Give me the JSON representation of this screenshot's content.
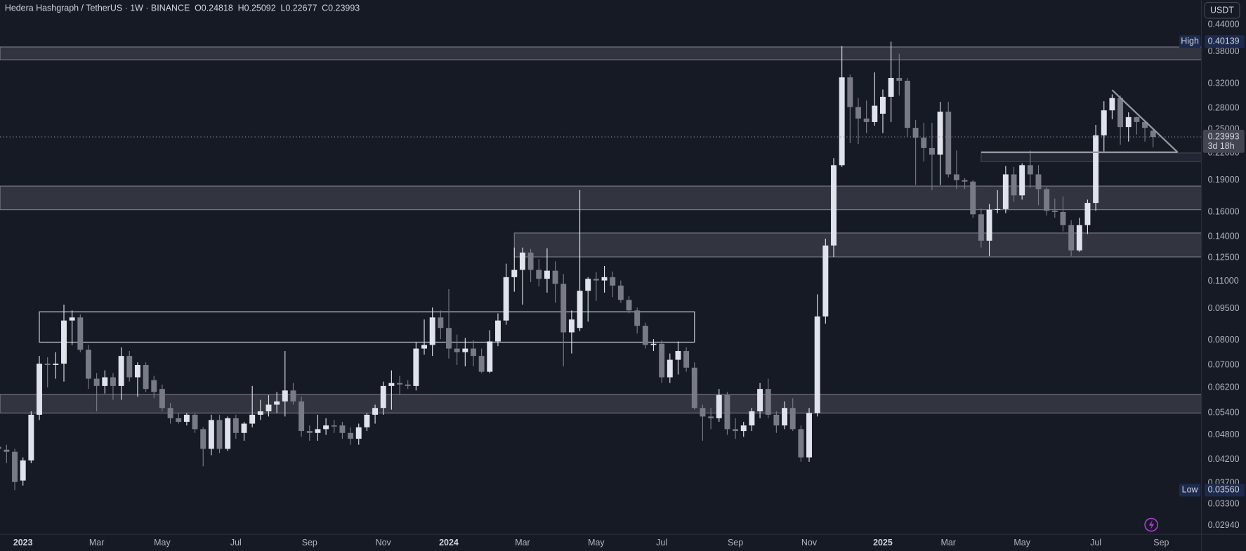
{
  "chart_data": {
    "type": "candlestick",
    "title": "Hedera Hashgraph / TetherUS · 1W · BINANCE",
    "ohlc_labels": [
      "O",
      "H",
      "L",
      "C"
    ],
    "currency": "USDT",
    "countdown": "3d 18h",
    "up_color": "#e0e3eb",
    "down_color": "#787b86",
    "log_scale": true,
    "grid": false,
    "ylim": [
      0.02805,
      0.5027
    ],
    "xlim": [
      0.2,
      146.9
    ],
    "yticks": [
      {
        "value": 0.44,
        "label": "0.44000"
      },
      {
        "value": 0.38,
        "label": "0.38000"
      },
      {
        "value": 0.32,
        "label": "0.32000"
      },
      {
        "value": 0.28,
        "label": "0.28000"
      },
      {
        "value": 0.25,
        "label": "0.25000"
      },
      {
        "value": 0.22,
        "label": "0.22000"
      },
      {
        "value": 0.19,
        "label": "0.19000"
      },
      {
        "value": 0.16,
        "label": "0.16000"
      },
      {
        "value": 0.14,
        "label": "0.14000"
      },
      {
        "value": 0.125,
        "label": "0.12500"
      },
      {
        "value": 0.11,
        "label": "0.11000"
      },
      {
        "value": 0.095,
        "label": "0.09500"
      },
      {
        "value": 0.08,
        "label": "0.08000"
      },
      {
        "value": 0.07,
        "label": "0.07000"
      },
      {
        "value": 0.062,
        "label": "0.06200"
      },
      {
        "value": 0.054,
        "label": "0.05400"
      },
      {
        "value": 0.048,
        "label": "0.04800"
      },
      {
        "value": 0.042,
        "label": "0.04200"
      },
      {
        "value": 0.037,
        "label": "0.03700"
      },
      {
        "value": 0.033,
        "label": "0.03300"
      },
      {
        "value": 0.0294,
        "label": "0.02940"
      }
    ],
    "categories": [
      null,
      null,
      null,
      "2023",
      null,
      null,
      null,
      null,
      null,
      null,
      null,
      null,
      "Mar",
      null,
      null,
      null,
      null,
      null,
      null,
      null,
      "May",
      null,
      null,
      null,
      null,
      null,
      null,
      null,
      null,
      "Jul",
      null,
      null,
      null,
      null,
      null,
      null,
      null,
      null,
      "Sep",
      null,
      null,
      null,
      null,
      null,
      null,
      null,
      null,
      "Nov",
      null,
      null,
      null,
      null,
      null,
      null,
      null,
      "2024",
      null,
      null,
      null,
      null,
      null,
      null,
      null,
      null,
      "Mar",
      null,
      null,
      null,
      null,
      null,
      null,
      null,
      null,
      "May",
      null,
      null,
      null,
      null,
      null,
      null,
      null,
      "Jul",
      null,
      null,
      null,
      null,
      null,
      null,
      null,
      null,
      "Sep",
      null,
      null,
      null,
      null,
      null,
      null,
      null,
      null,
      "Nov",
      null,
      null,
      null,
      null,
      null,
      null,
      null,
      null,
      "2025",
      null,
      null,
      null,
      null,
      null,
      null,
      null,
      "Mar",
      null,
      null,
      null,
      null,
      null,
      null,
      null,
      null,
      "May",
      null,
      null,
      null,
      null,
      null,
      null,
      null,
      null,
      "Jul",
      null,
      null,
      null,
      null,
      null,
      null,
      null,
      "Sep"
    ],
    "open": [
      0.045,
      0.0443,
      0.0438,
      0.0375,
      0.0418,
      0.0535,
      0.0705,
      0.07,
      0.0705,
      0.089,
      0.0905,
      0.076,
      0.065,
      0.0625,
      0.0655,
      0.0625,
      0.0735,
      0.0655,
      0.07,
      0.0645,
      0.0615,
      0.0555,
      0.0525,
      0.0515,
      0.0535,
      0.0495,
      0.0445,
      0.052,
      0.0445,
      0.0525,
      0.0485,
      0.051,
      0.0535,
      0.0545,
      0.0565,
      0.0575,
      0.061,
      0.0575,
      0.049,
      0.0485,
      0.0495,
      0.0505,
      0.0505,
      0.0485,
      0.047,
      0.05,
      0.0535,
      0.0555,
      0.0625,
      0.0635,
      0.063,
      0.0625,
      0.0765,
      0.078,
      0.0905,
      0.0855,
      0.0765,
      0.075,
      0.0765,
      0.0735,
      0.0675,
      0.0795,
      0.089,
      0.1125,
      0.117,
      0.1285,
      0.117,
      0.1115,
      0.1165,
      0.1085,
      0.0835,
      0.0855,
      0.1045,
      0.1115,
      0.1105,
      0.1125,
      0.1075,
      0.0995,
      0.094,
      0.0865,
      0.078,
      0.0785,
      0.0655,
      0.072,
      0.0755,
      0.069,
      0.0555,
      0.053,
      0.0525,
      0.0595,
      0.0495,
      0.049,
      0.0505,
      0.0545,
      0.0615,
      0.0535,
      0.0505,
      0.0555,
      0.0495,
      0.0425,
      0.054,
      0.091,
      0.1335,
      0.206,
      0.331,
      0.282,
      0.265,
      0.26,
      0.272,
      0.298,
      0.33,
      0.325,
      0.252,
      0.239,
      0.226,
      0.218,
      0.275,
      0.196,
      0.19,
      0.1885,
      0.158,
      0.137,
      0.162,
      0.1625,
      0.196,
      0.175,
      0.206,
      0.196,
      0.181,
      0.161,
      0.16,
      0.149,
      0.13,
      0.149,
      0.168,
      0.242,
      0.277,
      0.296,
      0.253,
      0.267,
      0.26,
      0.24818,
      null
    ],
    "high": [
      0.048,
      0.0455,
      0.0445,
      0.0425,
      0.0545,
      0.0735,
      0.073,
      0.075,
      0.097,
      0.094,
      0.092,
      0.078,
      0.067,
      0.068,
      0.067,
      0.077,
      0.0755,
      0.071,
      0.071,
      0.066,
      0.063,
      0.057,
      0.054,
      0.054,
      0.054,
      0.05,
      0.0535,
      0.0535,
      0.053,
      0.0535,
      0.0515,
      0.0625,
      0.058,
      0.0595,
      0.0605,
      0.0755,
      0.0635,
      0.059,
      0.0505,
      0.0535,
      0.0525,
      0.052,
      0.0515,
      0.05,
      0.051,
      0.054,
      0.0565,
      0.064,
      0.068,
      0.066,
      0.0645,
      0.079,
      0.0895,
      0.0955,
      0.094,
      0.1055,
      0.0825,
      0.081,
      0.08,
      0.0765,
      0.0845,
      0.0925,
      0.121,
      0.132,
      0.132,
      0.131,
      0.124,
      0.1315,
      0.1225,
      0.1145,
      0.094,
      0.18,
      0.1125,
      0.1155,
      0.1195,
      0.116,
      0.1105,
      0.1015,
      0.0955,
      0.088,
      0.0805,
      0.08,
      0.0745,
      0.0795,
      0.077,
      0.071,
      0.0565,
      0.0555,
      0.0615,
      0.0605,
      0.0525,
      0.0515,
      0.0555,
      0.0635,
      0.065,
      0.0545,
      0.0575,
      0.0585,
      0.0505,
      0.0555,
      0.1025,
      0.1385,
      0.214,
      0.392,
      0.336,
      0.296,
      0.292,
      0.34,
      0.31,
      0.40139,
      0.376,
      0.33,
      0.263,
      0.259,
      0.259,
      0.29,
      0.29,
      0.223,
      0.192,
      0.19,
      0.163,
      0.167,
      0.18,
      0.205,
      0.204,
      0.208,
      0.223,
      0.206,
      0.183,
      0.172,
      0.174,
      0.153,
      0.155,
      0.171,
      0.256,
      0.291,
      0.302,
      0.3,
      0.274,
      0.268,
      0.262,
      0.25092,
      null
    ],
    "low": [
      0.044,
      0.0412,
      0.0356,
      0.0365,
      0.0412,
      0.052,
      0.062,
      0.065,
      0.064,
      0.078,
      0.075,
      0.0615,
      0.0545,
      0.06,
      0.058,
      0.058,
      0.064,
      0.059,
      0.0605,
      0.0585,
      0.0545,
      0.051,
      0.051,
      0.0505,
      0.0485,
      0.0405,
      0.043,
      0.0435,
      0.044,
      0.047,
      0.0465,
      0.05,
      0.052,
      0.053,
      0.054,
      0.053,
      0.0565,
      0.0475,
      0.0465,
      0.0465,
      0.048,
      0.0485,
      0.047,
      0.0455,
      0.0455,
      0.049,
      0.051,
      0.0535,
      0.055,
      0.0595,
      0.0615,
      0.061,
      0.074,
      0.0735,
      0.0805,
      0.0725,
      0.07,
      0.0695,
      0.0695,
      0.067,
      0.067,
      0.0775,
      0.087,
      0.104,
      0.097,
      0.1095,
      0.107,
      0.1035,
      0.098,
      0.0695,
      0.0745,
      0.084,
      0.0885,
      0.099,
      0.1035,
      0.101,
      0.098,
      0.0925,
      0.083,
      0.0765,
      0.0755,
      0.0635,
      0.0635,
      0.0665,
      0.0675,
      0.055,
      0.0465,
      0.0495,
      0.0515,
      0.048,
      0.047,
      0.0475,
      0.049,
      0.0525,
      0.0525,
      0.0485,
      0.0495,
      0.049,
      0.0415,
      0.0415,
      0.053,
      0.0875,
      0.1255,
      0.204,
      0.232,
      0.231,
      0.245,
      0.255,
      0.245,
      0.26,
      0.3,
      0.24,
      0.185,
      0.21,
      0.18,
      0.185,
      0.193,
      0.181,
      0.181,
      0.155,
      0.132,
      0.126,
      0.159,
      0.159,
      0.169,
      0.171,
      0.182,
      0.166,
      0.157,
      0.155,
      0.144,
      0.126,
      0.129,
      0.142,
      0.161,
      0.222,
      0.264,
      0.23,
      0.234,
      0.243,
      0.234,
      0.22677,
      null
    ],
    "close": [
      0.0445,
      0.0438,
      0.0372,
      0.0418,
      0.0535,
      0.0705,
      0.07,
      0.0705,
      0.089,
      0.0905,
      0.076,
      0.065,
      0.0625,
      0.0655,
      0.0625,
      0.0735,
      0.0655,
      0.07,
      0.0615,
      0.0605,
      0.0555,
      0.0525,
      0.0515,
      0.0535,
      0.0495,
      0.0445,
      0.052,
      0.0445,
      0.0525,
      0.0485,
      0.051,
      0.0535,
      0.0545,
      0.0565,
      0.0575,
      0.061,
      0.0575,
      0.049,
      0.0485,
      0.0495,
      0.0505,
      0.0502,
      0.0485,
      0.047,
      0.05,
      0.0535,
      0.0555,
      0.0625,
      0.0635,
      0.063,
      0.0625,
      0.0765,
      0.078,
      0.0905,
      0.0855,
      0.0765,
      0.075,
      0.0765,
      0.0735,
      0.0675,
      0.0795,
      0.089,
      0.1125,
      0.117,
      0.1285,
      0.117,
      0.1115,
      0.1165,
      0.1085,
      0.0835,
      0.0895,
      0.1045,
      0.1115,
      0.1105,
      0.1125,
      0.1075,
      0.0995,
      0.094,
      0.0865,
      0.078,
      0.0785,
      0.0655,
      0.072,
      0.0755,
      0.069,
      0.0555,
      0.053,
      0.0525,
      0.0595,
      0.0495,
      0.049,
      0.0505,
      0.0545,
      0.0615,
      0.0535,
      0.0505,
      0.0555,
      0.0495,
      0.0425,
      0.054,
      0.091,
      0.1335,
      0.206,
      0.331,
      0.282,
      0.265,
      0.26,
      0.284,
      0.298,
      0.33,
      0.325,
      0.252,
      0.239,
      0.226,
      0.218,
      0.275,
      0.196,
      0.19,
      0.1885,
      0.158,
      0.137,
      0.162,
      0.1625,
      0.196,
      0.175,
      0.206,
      0.196,
      0.181,
      0.161,
      0.16,
      0.149,
      0.13,
      0.149,
      0.168,
      0.242,
      0.277,
      0.296,
      0.253,
      0.267,
      0.26,
      0.252,
      0.23993,
      null
    ],
    "zones": [
      {
        "range": [
          0.364,
          0.39
        ],
        "start": 0.2,
        "end": 146.9,
        "fill": "#4a4d58",
        "stroke": "#787b86"
      },
      {
        "range": [
          0.162,
          0.184
        ],
        "start": 0.2,
        "end": 146.9,
        "fill": "#4a4d58",
        "stroke": "#787b86"
      },
      {
        "range": [
          0.1255,
          0.1428
        ],
        "start": 63,
        "end": 146.9,
        "fill": "#4a4d58",
        "stroke": "#787b86"
      },
      {
        "range": [
          0.054,
          0.0597
        ],
        "start": 0.2,
        "end": 146.9,
        "fill": "#4a4d58",
        "stroke": "#787b86"
      },
      {
        "range": [
          0.0792,
          0.0933
        ],
        "start": 5,
        "end": 85,
        "fill": "none",
        "stroke": "#d1d4dc"
      },
      {
        "range": [
          0.21,
          0.22
        ],
        "start": 120,
        "end": 146.9,
        "fill": "#2e323e",
        "stroke": "#434651"
      }
    ],
    "lines": [
      {
        "start": [
          136,
          0.309
        ],
        "end": [
          144,
          0.2209
        ],
        "color": "#9598a1"
      },
      {
        "start": [
          120,
          0.2209
        ],
        "end": [
          144,
          0.2209
        ],
        "color": "#9598a1"
      }
    ],
    "high_marker": {
      "label": "High",
      "value": 0.40139
    },
    "low_marker": {
      "label": "Low",
      "value": 0.0356,
      "value_label": "0.03560"
    }
  }
}
